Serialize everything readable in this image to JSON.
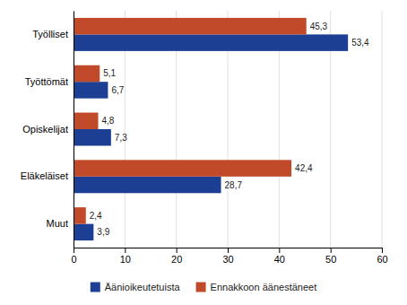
{
  "chart_data": {
    "type": "bar",
    "orientation": "horizontal",
    "categories": [
      "Työlliset",
      "Työttömät",
      "Opiskelijat",
      "Eläkeläiset",
      "Muut"
    ],
    "series": [
      {
        "name": "Äänioikeutetuista",
        "color": "#1c3f94",
        "values": [
          53.4,
          6.7,
          7.3,
          28.7,
          3.9
        ],
        "value_labels": [
          "53,4",
          "6,7",
          "7,3",
          "28,7",
          "3,9"
        ]
      },
      {
        "name": "Ennakkoon äänestäneet",
        "color": "#c04a2a",
        "values": [
          45.3,
          5.1,
          4.8,
          42.4,
          2.4
        ],
        "value_labels": [
          "45,3",
          "5,1",
          "4,8",
          "42,4",
          "2,4"
        ]
      }
    ],
    "xlim": [
      0,
      60
    ],
    "xticks": [
      0,
      10,
      20,
      30,
      40,
      50,
      60
    ],
    "grid": true,
    "data_labels": true,
    "legend": "bottom"
  }
}
